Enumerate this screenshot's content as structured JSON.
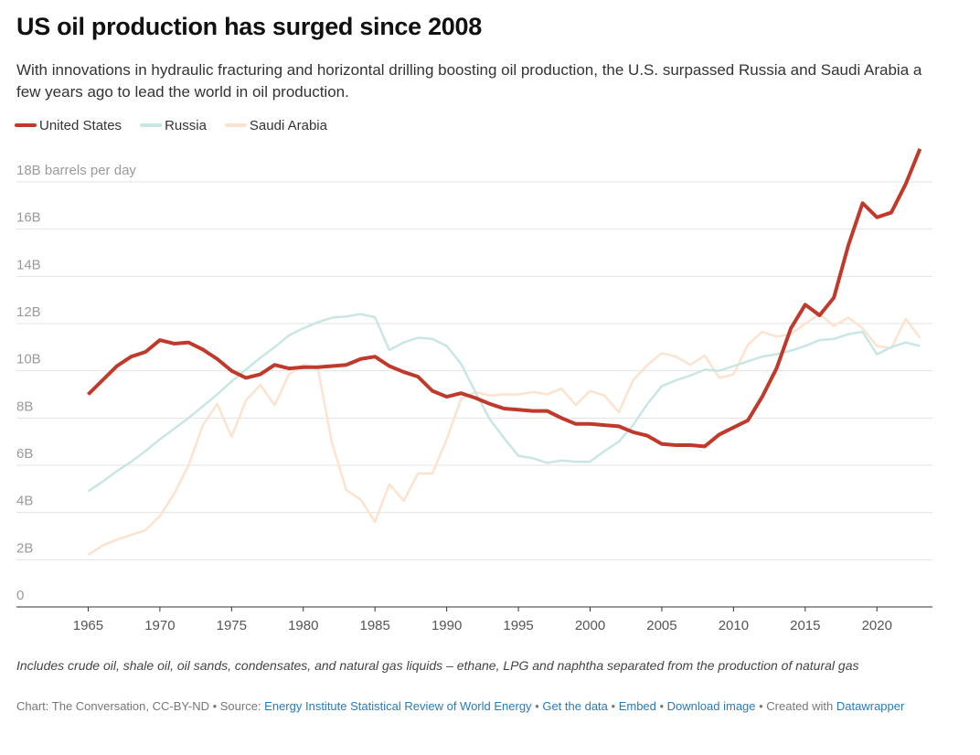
{
  "chart_data": {
    "type": "line",
    "title": "US oil production has surged since 2008",
    "subtitle": "With innovations in hydraulic fracturing and horizontal drilling boosting oil production, the U.S. surpassed Russia and Saudi Arabia a few years ago to lead the world in oil production.",
    "x": [
      1965,
      1966,
      1967,
      1968,
      1969,
      1970,
      1971,
      1972,
      1973,
      1974,
      1975,
      1976,
      1977,
      1978,
      1979,
      1980,
      1981,
      1982,
      1983,
      1984,
      1985,
      1986,
      1987,
      1988,
      1989,
      1990,
      1991,
      1992,
      1993,
      1994,
      1995,
      1996,
      1997,
      1998,
      1999,
      2000,
      2001,
      2002,
      2003,
      2004,
      2005,
      2006,
      2007,
      2008,
      2009,
      2010,
      2011,
      2012,
      2013,
      2014,
      2015,
      2016,
      2017,
      2018,
      2019,
      2020,
      2021,
      2022,
      2023
    ],
    "series": [
      {
        "name": "Saudi Arabia",
        "color": "#fde3cf",
        "values": [
          2.2,
          2.6,
          2.85,
          3.05,
          3.25,
          3.85,
          4.8,
          6.0,
          7.7,
          8.6,
          7.2,
          8.75,
          9.4,
          8.55,
          9.85,
          10.25,
          10.15,
          6.95,
          4.95,
          4.55,
          3.6,
          5.2,
          4.5,
          5.65,
          5.65,
          7.1,
          8.8,
          9.1,
          8.95,
          9.0,
          9.0,
          9.1,
          9.0,
          9.25,
          8.55,
          9.15,
          8.95,
          8.25,
          9.6,
          10.25,
          10.75,
          10.6,
          10.25,
          10.65,
          9.7,
          9.85,
          11.1,
          11.65,
          11.45,
          11.55,
          12.0,
          12.4,
          11.9,
          12.25,
          11.8,
          11.05,
          10.95,
          12.2,
          11.4
        ]
      },
      {
        "name": "Russia",
        "color": "#c8e6e4",
        "values": [
          4.9,
          5.3,
          5.75,
          6.15,
          6.6,
          7.1,
          7.55,
          8.0,
          8.5,
          9.0,
          9.55,
          10.05,
          10.55,
          11.0,
          11.5,
          11.8,
          12.05,
          12.25,
          12.3,
          12.4,
          12.27,
          10.88,
          11.2,
          11.4,
          11.35,
          11.05,
          10.3,
          9.1,
          7.95,
          7.15,
          6.4,
          6.3,
          6.1,
          6.2,
          6.15,
          6.15,
          6.6,
          7.0,
          7.7,
          8.6,
          9.35,
          9.6,
          9.8,
          10.05,
          10.0,
          10.2,
          10.4,
          10.6,
          10.7,
          10.85,
          11.05,
          11.3,
          11.35,
          11.55,
          11.65,
          10.7,
          11.0,
          11.2,
          11.05
        ]
      },
      {
        "name": "United States",
        "color": "#c0392b",
        "values": [
          9.0,
          9.6,
          10.2,
          10.6,
          10.8,
          11.3,
          11.15,
          11.2,
          10.9,
          10.5,
          10.0,
          9.7,
          9.85,
          10.25,
          10.1,
          10.15,
          10.15,
          10.2,
          10.25,
          10.5,
          10.6,
          10.2,
          9.95,
          9.75,
          9.15,
          8.9,
          9.05,
          8.85,
          8.6,
          8.4,
          8.35,
          8.3,
          8.3,
          8.0,
          7.75,
          7.75,
          7.7,
          7.65,
          7.4,
          7.25,
          6.9,
          6.85,
          6.85,
          6.8,
          7.3,
          7.6,
          7.9,
          8.9,
          10.1,
          11.8,
          12.8,
          12.35,
          13.1,
          15.3,
          17.1,
          16.5,
          16.7,
          17.9,
          19.4
        ]
      }
    ],
    "legend_order": [
      2,
      1,
      0
    ],
    "xlim": [
      1960,
      2024
    ],
    "xticks": [
      1965,
      1970,
      1975,
      1980,
      1985,
      1990,
      1995,
      2000,
      2005,
      2010,
      2015,
      2020
    ],
    "ylim": [
      0,
      18
    ],
    "yticks": [
      0,
      {
        "value": 2,
        "label": "2B"
      },
      {
        "value": 4,
        "label": "4B"
      },
      {
        "value": 6,
        "label": "6B"
      },
      {
        "value": 8,
        "label": "8B"
      },
      {
        "value": 10,
        "label": "10B"
      },
      {
        "value": 12,
        "label": "12B"
      },
      {
        "value": 14,
        "label": "14B"
      },
      {
        "value": 16,
        "label": "16B"
      },
      {
        "value": 18,
        "label": "18B barrels per day"
      }
    ],
    "grid": true,
    "note": "Includes crude oil, shale oil, oil sands, condensates, and natural gas liquids – ethane, LPG and naphtha separated from the production of natural gas",
    "credit": {
      "chart": "Chart: The Conversation, CC-BY-ND • Source: ",
      "source": "Energy Institute Statistical Review of World Energy",
      "sep1": " • ",
      "get_data": "Get the data",
      "sep2": " • ",
      "embed": "Embed",
      "sep3": " • ",
      "download": "Download image",
      "sep4": " • Created with ",
      "tool": "Datawrapper"
    }
  }
}
